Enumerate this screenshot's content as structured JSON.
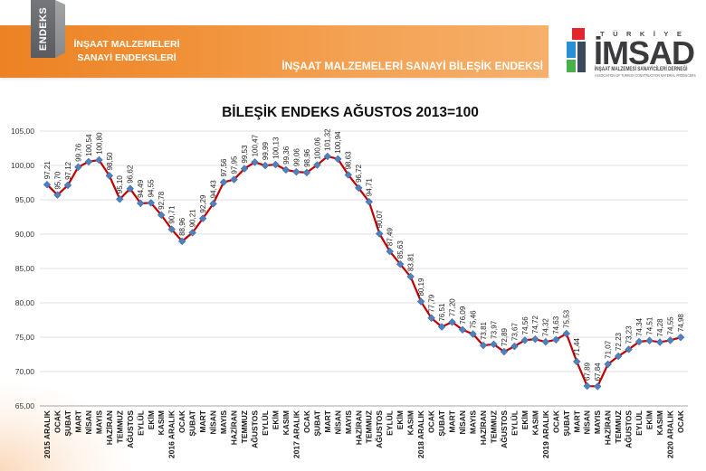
{
  "header": {
    "badge": "ENDEKS",
    "title_line1": "İNŞAAT MALZEMELERİ",
    "title_line2": "SANAYİ ENDEKSLERİ",
    "subtitle": "İNŞAAT MALZEMELERİ SANAYİ BİLEŞİK ENDEKSİ"
  },
  "logo": {
    "icon": "imsad-logo-icon",
    "country": "TÜRKİYE",
    "name": "İMSAD",
    "tagline": "İNŞAAT MALZEMESİ SANAYİCİLERİ DERNEĞİ",
    "tagline_en": "ASSOCIATION OF TURKISH CONSTRUCTION MATERIAL PRODUCERS"
  },
  "colors": {
    "header_orange": "#f08f35",
    "line": "#c00000",
    "marker": "#4f81bd"
  },
  "chart_data": {
    "type": "line",
    "title": "BİLEŞİK ENDEKS AĞUSTOS 2013=100",
    "categories": [
      "2015 ARALIK",
      "OCAK",
      "ŞUBAT",
      "MART",
      "NİSAN",
      "MAYIS",
      "HAZİRAN",
      "TEMMUZ",
      "AĞUSTOS",
      "EYLÜL",
      "EKİM",
      "KASIM",
      "2016 ARALIK",
      "OCAK",
      "ŞUBAT",
      "MART",
      "NİSAN",
      "MAYIS",
      "HAZİRAN",
      "TEMMUZ",
      "AĞUSTOS",
      "EYLÜL",
      "EKİM",
      "KASIM",
      "2017 ARALIK",
      "OCAK",
      "ŞUBAT",
      "MART",
      "NİSAN",
      "MAYIS",
      "HAZİRAN",
      "TEMMUZ",
      "AĞUSTOS",
      "EYLÜL",
      "EKİM",
      "KASIM",
      "2018 ARALIK",
      "OCAK",
      "ŞUBAT",
      "MART",
      "NİSAN",
      "MAYIS",
      "HAZİRAN",
      "TEMMUZ",
      "AĞUSTOS",
      "EYLÜL",
      "EKİM",
      "KASIM",
      "2019 ARALIK",
      "OCAK",
      "ŞUBAT",
      "MART",
      "NİSAN",
      "MAYIS",
      "HAZİRAN",
      "TEMMUZ",
      "AĞUSTOS",
      "EYLÜL",
      "EKİM",
      "KASIM",
      "2020 ARALIK",
      "OCAK"
    ],
    "series": [
      {
        "values": [
          97.21,
          95.7,
          97.12,
          99.76,
          100.54,
          100.8,
          98.5,
          95.1,
          96.62,
          94.49,
          94.55,
          92.78,
          90.71,
          88.96,
          90.21,
          92.29,
          94.43,
          97.56,
          97.95,
          99.53,
          100.47,
          99.99,
          100.13,
          99.36,
          99.06,
          98.96,
          100.06,
          101.32,
          100.94,
          98.63,
          96.72,
          94.71,
          90.07,
          87.49,
          85.63,
          83.81,
          80.19,
          77.79,
          76.51,
          77.2,
          76.09,
          75.46,
          73.81,
          73.97,
          72.89,
          73.67,
          74.56,
          74.72,
          74.32,
          74.63,
          75.53,
          71.44,
          67.89,
          67.84,
          71.07,
          72.23,
          73.23,
          74.34,
          74.51,
          74.28,
          74.55,
          74.98
        ]
      }
    ],
    "ylim": [
      65,
      105
    ],
    "yticks": [
      65,
      70,
      75,
      80,
      85,
      90,
      95,
      100,
      105
    ],
    "grid": true,
    "data_labels": true
  }
}
